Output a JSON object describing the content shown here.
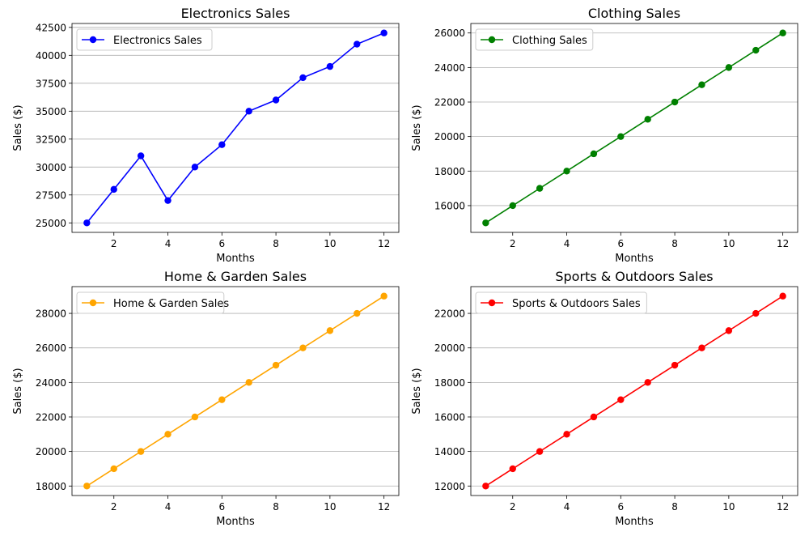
{
  "chart_data": [
    {
      "type": "line",
      "title": "Electronics Sales",
      "xlabel": "Months",
      "ylabel": "Sales ($)",
      "x": [
        1,
        2,
        3,
        4,
        5,
        6,
        7,
        8,
        9,
        10,
        11,
        12
      ],
      "series": [
        {
          "name": "Electronics Sales",
          "color": "#0000ff",
          "values": [
            25000,
            28000,
            31000,
            27000,
            30000,
            32000,
            35000,
            36000,
            38000,
            39000,
            41000,
            42000
          ]
        }
      ],
      "xlim": [
        0.45,
        12.55
      ],
      "ylim": [
        24150,
        42850
      ],
      "xticks": [
        2,
        4,
        6,
        8,
        10,
        12
      ],
      "yticks": [
        25000,
        27500,
        30000,
        32500,
        35000,
        37500,
        40000,
        42500
      ],
      "grid": "y",
      "legend": "top-left"
    },
    {
      "type": "line",
      "title": "Clothing Sales",
      "xlabel": "Months",
      "ylabel": "Sales ($)",
      "x": [
        1,
        2,
        3,
        4,
        5,
        6,
        7,
        8,
        9,
        10,
        11,
        12
      ],
      "series": [
        {
          "name": "Clothing Sales",
          "color": "#008000",
          "values": [
            15000,
            16000,
            17000,
            18000,
            19000,
            20000,
            21000,
            22000,
            23000,
            24000,
            25000,
            26000
          ]
        }
      ],
      "xlim": [
        0.45,
        12.55
      ],
      "ylim": [
        14450,
        26550
      ],
      "xticks": [
        2,
        4,
        6,
        8,
        10,
        12
      ],
      "yticks": [
        16000,
        18000,
        20000,
        22000,
        24000,
        26000
      ],
      "grid": "y",
      "legend": "top-left"
    },
    {
      "type": "line",
      "title": "Home & Garden Sales",
      "xlabel": "Months",
      "ylabel": "Sales ($)",
      "x": [
        1,
        2,
        3,
        4,
        5,
        6,
        7,
        8,
        9,
        10,
        11,
        12
      ],
      "series": [
        {
          "name": "Home & Garden Sales",
          "color": "#ffa500",
          "values": [
            18000,
            19000,
            20000,
            21000,
            22000,
            23000,
            24000,
            25000,
            26000,
            27000,
            28000,
            29000
          ]
        }
      ],
      "xlim": [
        0.45,
        12.55
      ],
      "ylim": [
        17450,
        29550
      ],
      "xticks": [
        2,
        4,
        6,
        8,
        10,
        12
      ],
      "yticks": [
        18000,
        20000,
        22000,
        24000,
        26000,
        28000
      ],
      "grid": "y",
      "legend": "top-left"
    },
    {
      "type": "line",
      "title": "Sports & Outdoors Sales",
      "xlabel": "Months",
      "ylabel": "Sales ($)",
      "x": [
        1,
        2,
        3,
        4,
        5,
        6,
        7,
        8,
        9,
        10,
        11,
        12
      ],
      "series": [
        {
          "name": "Sports & Outdoors Sales",
          "color": "#ff0000",
          "values": [
            12000,
            13000,
            14000,
            15000,
            16000,
            17000,
            18000,
            19000,
            20000,
            21000,
            22000,
            23000
          ]
        }
      ],
      "xlim": [
        0.45,
        12.55
      ],
      "ylim": [
        11450,
        23550
      ],
      "xticks": [
        2,
        4,
        6,
        8,
        10,
        12
      ],
      "yticks": [
        12000,
        14000,
        16000,
        18000,
        20000,
        22000
      ],
      "grid": "y",
      "legend": "top-left"
    }
  ]
}
